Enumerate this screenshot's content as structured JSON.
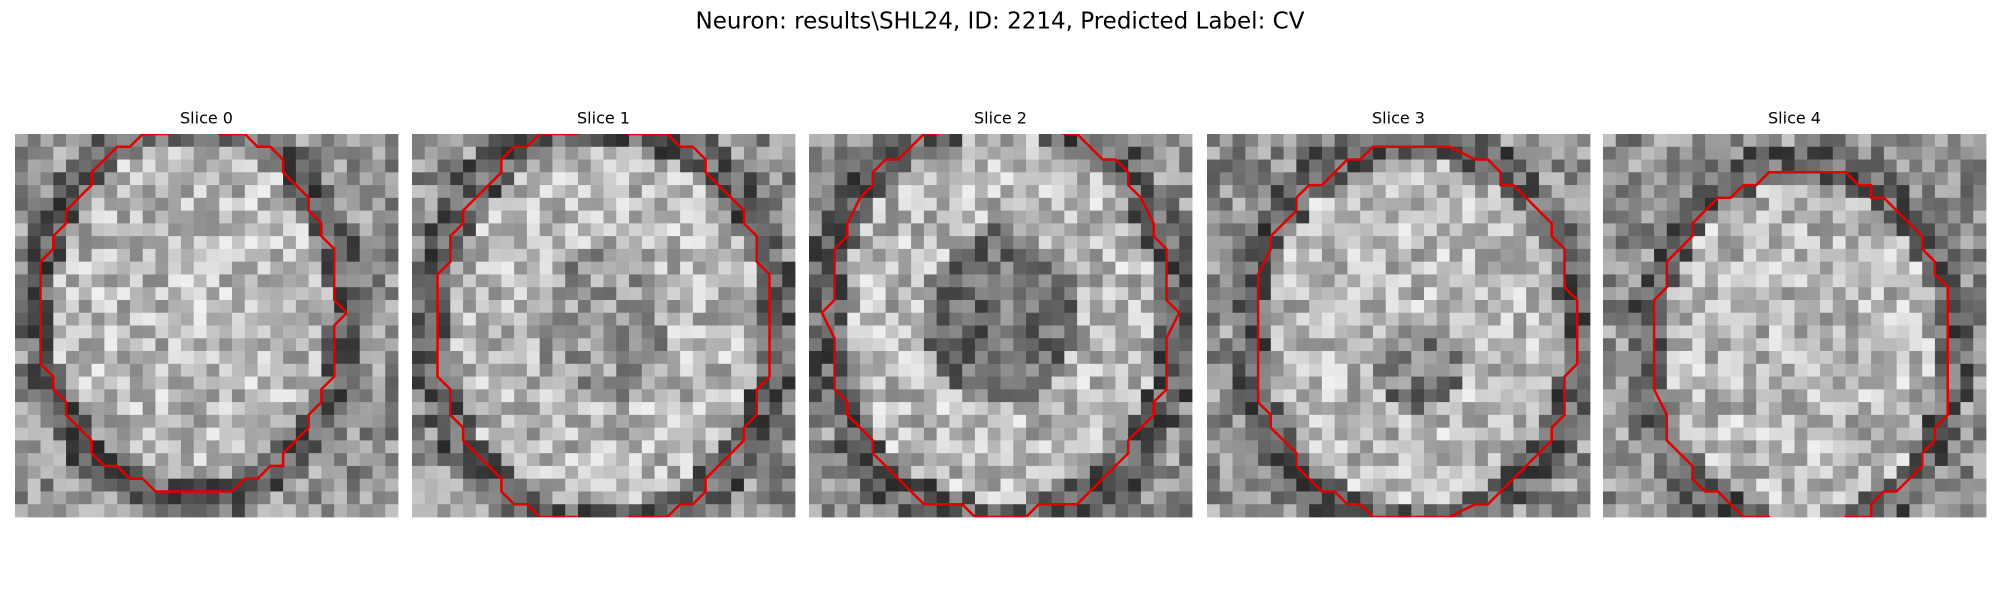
{
  "header": {
    "title": "Neuron: results\\SHL24, ID: 2214, Predicted Label: CV"
  },
  "panels": [
    {
      "title": "Slice 0"
    },
    {
      "title": "Slice 1"
    },
    {
      "title": "Slice 2"
    },
    {
      "title": "Slice 3"
    },
    {
      "title": "Slice 4"
    }
  ]
}
